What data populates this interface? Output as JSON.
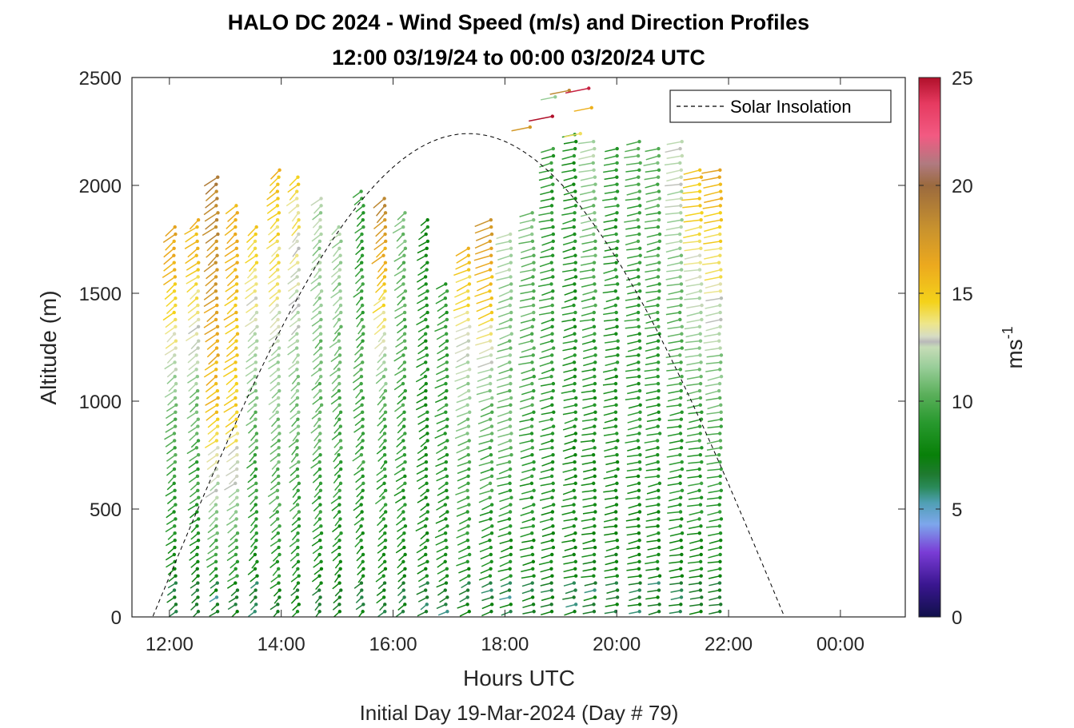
{
  "chart_data": {
    "type": "wind-barb-profile",
    "title": "HALO DC 2024 - Wind Speed (m/s) and Direction Profiles",
    "subtitle": "12:00 03/19/24 to 00:00 03/20/24  UTC",
    "xlabel": "Hours UTC",
    "xlabel2": "Initial Day 19-Mar-2024 (Day # 79)",
    "ylabel": "Altitude (m)",
    "x_ticks": [
      {
        "hour": 12,
        "label": "12:00"
      },
      {
        "hour": 14,
        "label": "14:00"
      },
      {
        "hour": 16,
        "label": "16:00"
      },
      {
        "hour": 18,
        "label": "18:00"
      },
      {
        "hour": 20,
        "label": "20:00"
      },
      {
        "hour": 22,
        "label": "22:00"
      },
      {
        "hour": 24,
        "label": "00:00"
      }
    ],
    "xlim": [
      11.33,
      25.16
    ],
    "y_ticks": [
      0,
      500,
      1000,
      1500,
      2000,
      2500
    ],
    "ylim": [
      0,
      2500
    ],
    "colorbar": {
      "label": "ms",
      "label_exponent": "-1",
      "range": [
        0,
        25
      ],
      "ticks": [
        0,
        5,
        10,
        15,
        20,
        25
      ],
      "stops": [
        {
          "v": 0,
          "color": "#10104a"
        },
        {
          "v": 1.5,
          "color": "#3a1690"
        },
        {
          "v": 3,
          "color": "#7a3cd6"
        },
        {
          "v": 4.3,
          "color": "#7da7ec"
        },
        {
          "v": 5.3,
          "color": "#4f9fb3"
        },
        {
          "v": 6,
          "color": "#2a8a5a"
        },
        {
          "v": 6.6,
          "color": "#1f7a30"
        },
        {
          "v": 7.5,
          "color": "#088008"
        },
        {
          "v": 9,
          "color": "#28992e"
        },
        {
          "v": 10.3,
          "color": "#5aaf5a"
        },
        {
          "v": 11.6,
          "color": "#9ace9a"
        },
        {
          "v": 12.5,
          "color": "#c6dcb7"
        },
        {
          "v": 12.75,
          "color": "#b9b9b9"
        },
        {
          "v": 13.0,
          "color": "#d6dcc4"
        },
        {
          "v": 13.6,
          "color": "#eee68a"
        },
        {
          "v": 14.6,
          "color": "#f4d21a"
        },
        {
          "v": 16.3,
          "color": "#eca91e"
        },
        {
          "v": 18,
          "color": "#c8922e"
        },
        {
          "v": 20,
          "color": "#9b6a3e"
        },
        {
          "v": 21,
          "color": "#b07a80"
        },
        {
          "v": 22.3,
          "color": "#f25a82"
        },
        {
          "v": 23.8,
          "color": "#e63a60"
        },
        {
          "v": 25,
          "color": "#b0102a"
        }
      ]
    },
    "legend": {
      "entries": [
        "Solar Insolation"
      ],
      "location": "top-right"
    },
    "solar_insolation": {
      "style": "dashed",
      "color": "#000000",
      "sunrise_hour": 11.7,
      "peak_hour": 17.4,
      "sunset_hour": 23.0,
      "peak_altitude": 2240
    },
    "profiles": [
      {
        "hour": 12.1,
        "top": 1830,
        "upper": 17.0,
        "mid": 10.5,
        "low": 7.0,
        "dir": 215
      },
      {
        "hour": 12.5,
        "top": 1870,
        "upper": 16.5,
        "mid": 10.5,
        "low": 7.0,
        "dir": 215
      },
      {
        "hour": 12.85,
        "top": 2040,
        "upper": 19.0,
        "mid": 15.5,
        "low": 7.5,
        "dir": 215
      },
      {
        "hour": 13.2,
        "top": 1910,
        "upper": 16.0,
        "mid": 14.5,
        "low": 7.5,
        "dir": 215
      },
      {
        "hour": 13.55,
        "top": 1830,
        "upper": 15.0,
        "mid": 10.5,
        "low": 7.2,
        "dir": 212
      },
      {
        "hour": 13.95,
        "top": 2080,
        "upper": 15.5,
        "mid": 11.5,
        "low": 8.0,
        "dir": 212
      },
      {
        "hour": 14.3,
        "top": 2040,
        "upper": 14.5,
        "mid": 11.0,
        "low": 8.0,
        "dir": 210
      },
      {
        "hour": 14.7,
        "top": 1950,
        "upper": 12.0,
        "mid": 10.5,
        "low": 7.5,
        "dir": 210
      },
      {
        "hour": 15.05,
        "top": 1830,
        "upper": 12.0,
        "mid": 10.0,
        "low": 7.5,
        "dir": 210
      },
      {
        "hour": 15.45,
        "top": 2000,
        "upper": 9.0,
        "mid": 10.0,
        "low": 7.5,
        "dir": 210
      },
      {
        "hour": 15.85,
        "top": 1950,
        "upper": 18.5,
        "mid": 10.0,
        "low": 7.5,
        "dir": 210
      },
      {
        "hour": 16.2,
        "top": 1900,
        "upper": 11.0,
        "mid": 9.5,
        "low": 7.5,
        "dir": 215
      },
      {
        "hour": 16.6,
        "top": 1870,
        "upper": 8.0,
        "mid": 8.5,
        "low": 7.5,
        "dir": 220
      },
      {
        "hour": 16.95,
        "top": 1570,
        "upper": 9.0,
        "mid": 9.0,
        "low": 7.5,
        "dir": 225
      },
      {
        "hour": 17.35,
        "top": 1720,
        "upper": 15.5,
        "mid": 10.5,
        "low": 7.5,
        "dir": 230
      },
      {
        "hour": 17.75,
        "top": 1870,
        "upper": 18.0,
        "mid": 10.5,
        "low": 7.5,
        "dir": 235
      },
      {
        "hour": 18.1,
        "top": 1790,
        "upper": 12.0,
        "mid": 10.5,
        "low": 7.5,
        "dir": 240
      },
      {
        "hour": 18.5,
        "top": 1900,
        "upper": 11.0,
        "mid": 9.5,
        "low": 7.5,
        "dir": 245
      },
      {
        "hour": 18.85,
        "top": 2200,
        "upper": 9.0,
        "mid": 9.0,
        "low": 7.5,
        "dir": 245
      },
      {
        "hour": 19.25,
        "top": 2250,
        "upper": 8.5,
        "mid": 8.5,
        "low": 7.5,
        "dir": 245
      },
      {
        "hour": 19.6,
        "top": 2220,
        "upper": 12.0,
        "mid": 8.5,
        "low": 7.5,
        "dir": 250
      },
      {
        "hour": 20.0,
        "top": 2180,
        "upper": 9.0,
        "mid": 8.5,
        "low": 7.5,
        "dir": 250
      },
      {
        "hour": 20.4,
        "top": 2220,
        "upper": 10.0,
        "mid": 9.0,
        "low": 7.5,
        "dir": 250
      },
      {
        "hour": 20.75,
        "top": 2200,
        "upper": 10.5,
        "mid": 9.0,
        "low": 7.5,
        "dir": 250
      },
      {
        "hour": 21.15,
        "top": 2230,
        "upper": 13.0,
        "mid": 9.5,
        "low": 7.5,
        "dir": 252
      },
      {
        "hour": 21.5,
        "top": 2080,
        "upper": 15.5,
        "mid": 10.0,
        "low": 7.5,
        "dir": 252
      },
      {
        "hour": 21.85,
        "top": 2080,
        "upper": 16.5,
        "mid": 10.5,
        "low": 7.5,
        "dir": 252
      }
    ],
    "isolated_barbs": [
      {
        "hour": 18.9,
        "alt": 2410,
        "speed": 11.5
      },
      {
        "hour": 19.15,
        "alt": 2440,
        "speed": 18.5
      },
      {
        "hour": 19.5,
        "alt": 2450,
        "speed": 24.5
      },
      {
        "hour": 18.85,
        "alt": 2320,
        "speed": 25.0
      },
      {
        "hour": 19.55,
        "alt": 2360,
        "speed": 16.0
      },
      {
        "hour": 18.45,
        "alt": 2270,
        "speed": 17.5
      },
      {
        "hour": 19.35,
        "alt": 2240,
        "speed": 14.0
      }
    ]
  }
}
